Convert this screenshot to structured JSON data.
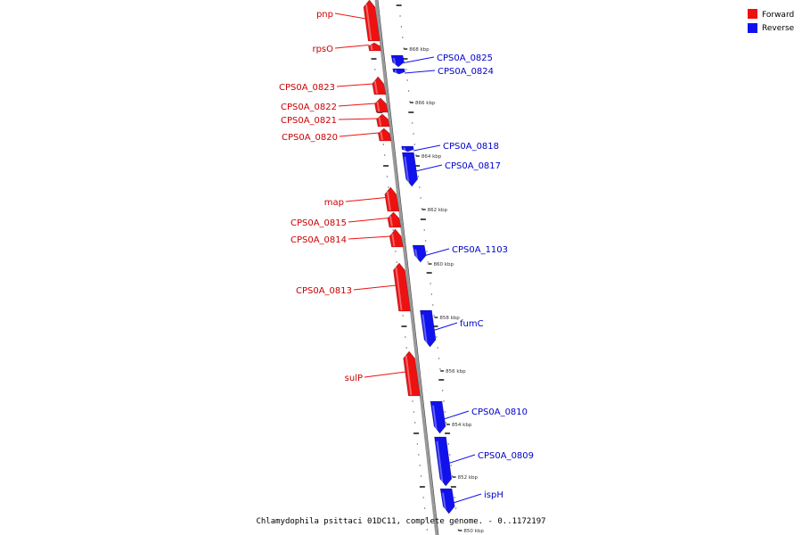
{
  "caption": "Chlamydophila psittaci 01DC11, complete genome. - 0..1172197",
  "colors": {
    "forward": "#ee1111",
    "forward_label": "#cc0000",
    "reverse": "#1111ee",
    "reverse_label": "#0000cc",
    "backbone": "#999999"
  },
  "legend": [
    {
      "label": "Forward",
      "color": "#ee1111"
    },
    {
      "label": "Reverse",
      "color": "#1111ee"
    }
  ],
  "ruler_labels": [
    "868 kbp",
    "866 kbp",
    "864 kbp",
    "862 kbp",
    "860 kbp",
    "858 kbp",
    "856 kbp",
    "854 kbp",
    "852 kbp",
    "850 kbp"
  ],
  "genes_forward": [
    "pnp",
    "rpsO",
    "CPS0A_0823",
    "CPS0A_0822",
    "CPS0A_0821",
    "CPS0A_0820",
    "map",
    "CPS0A_0815",
    "CPS0A_0814",
    "CPS0A_0813",
    "sulP"
  ],
  "genes_reverse": [
    "CPS0A_0825",
    "CPS0A_0824",
    "CPS0A_0818",
    "CPS0A_0817",
    "CPS0A_1103",
    "fumC",
    "CPS0A_0810",
    "CPS0A_0809",
    "ispH"
  ]
}
